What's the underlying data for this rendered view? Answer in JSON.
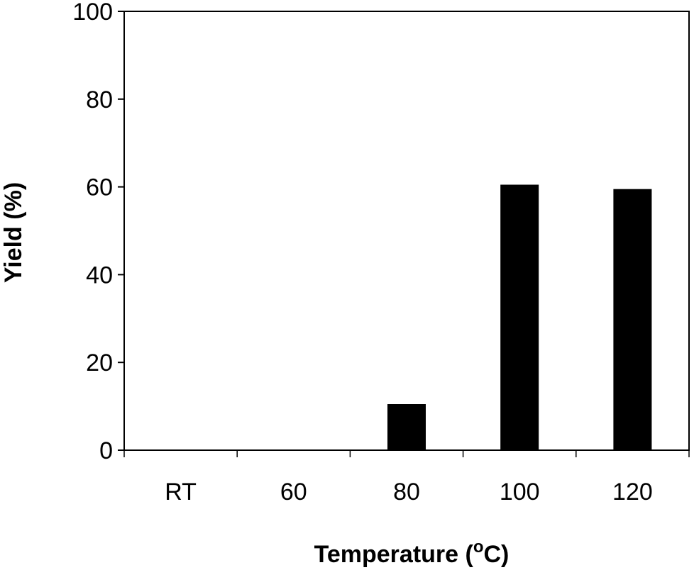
{
  "chart_data": {
    "type": "bar",
    "categories": [
      "RT",
      "60",
      "80",
      "100",
      "120"
    ],
    "values": [
      0,
      0,
      10.5,
      60.5,
      59.5
    ],
    "xlabel": "Temperature (°C)",
    "xlabel_main": "Temperature (",
    "xlabel_super": "o",
    "xlabel_tail": "C)",
    "ylabel": "Yield (%)",
    "ylim": [
      0,
      100
    ],
    "yticks": [
      "0",
      "20",
      "40",
      "60",
      "80",
      "100"
    ],
    "bar_color": "#000000",
    "grid": false,
    "legend": "none"
  }
}
